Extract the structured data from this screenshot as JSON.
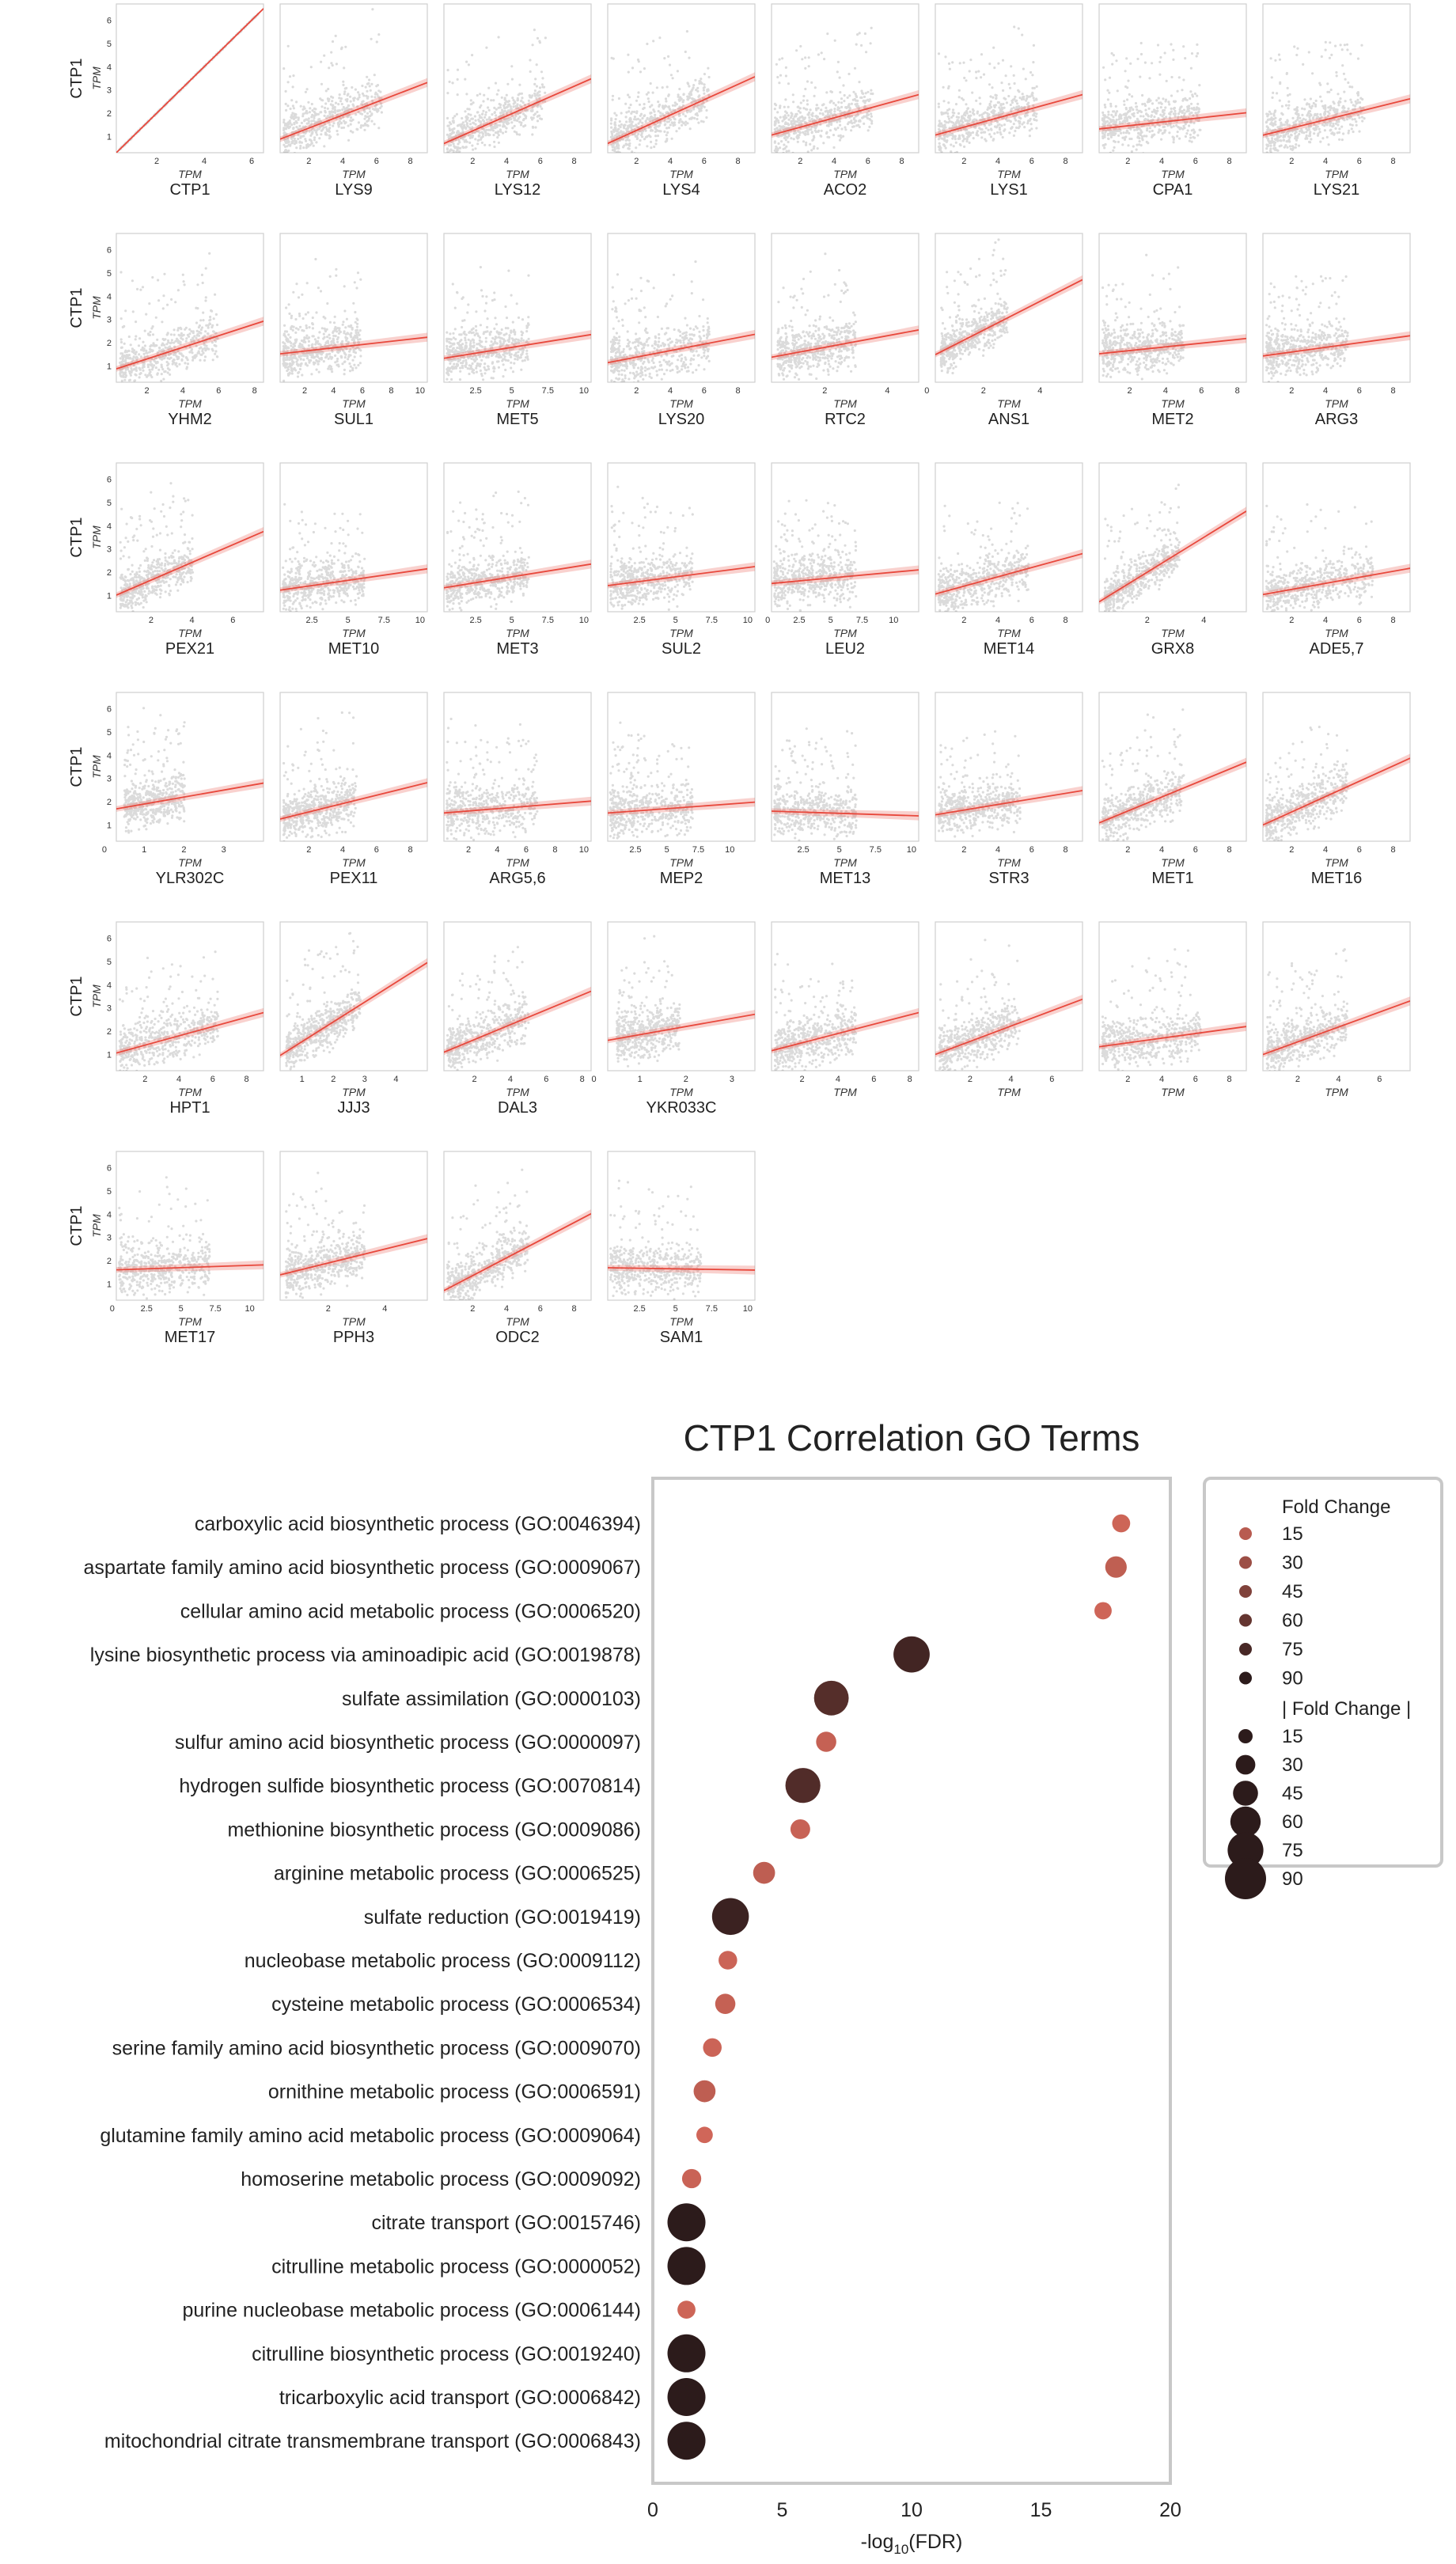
{
  "scatter_grid": {
    "y_label": "CTP1",
    "y_axis_label": "TPM",
    "x_axis_label": "TPM",
    "y_ticks": [
      1,
      2,
      3,
      4,
      5,
      6
    ],
    "point_color": "#000000",
    "line_color": "#e8483c",
    "panels": [
      {
        "gene": "CTP1",
        "xmax": 6.5,
        "xticks": [
          2,
          4,
          6
        ],
        "slope": 1.0,
        "intercept": 0.0,
        "spread": 0.02,
        "cloud": 0.9,
        "identity": true
      },
      {
        "gene": "LYS9",
        "xmax": 9.0,
        "xticks": [
          2,
          4,
          6,
          8
        ],
        "slope": 0.28,
        "intercept": 0.8,
        "spread": 0.7,
        "cloud": 0.5
      },
      {
        "gene": "LYS12",
        "xmax": 9.0,
        "xticks": [
          2,
          4,
          6,
          8
        ],
        "slope": 0.32,
        "intercept": 0.6,
        "spread": 0.7,
        "cloud": 0.5
      },
      {
        "gene": "LYS4",
        "xmax": 9.0,
        "xticks": [
          2,
          4,
          6,
          8
        ],
        "slope": 0.33,
        "intercept": 0.6,
        "spread": 0.7,
        "cloud": 0.5
      },
      {
        "gene": "ACO2",
        "xmax": 9.0,
        "xticks": [
          2,
          4,
          6,
          8
        ],
        "slope": 0.2,
        "intercept": 1.0,
        "spread": 0.7,
        "cloud": 0.5
      },
      {
        "gene": "LYS1",
        "xmax": 9.0,
        "xticks": [
          2,
          4,
          6,
          8
        ],
        "slope": 0.2,
        "intercept": 1.0,
        "spread": 0.7,
        "cloud": 0.5
      },
      {
        "gene": "CPA1",
        "xmax": 9.0,
        "xticks": [
          2,
          4,
          6,
          8
        ],
        "slope": 0.08,
        "intercept": 1.3,
        "spread": 0.7,
        "cloud": 0.5
      },
      {
        "gene": "LYS21",
        "xmax": 9.0,
        "xticks": [
          2,
          4,
          6,
          8
        ],
        "slope": 0.18,
        "intercept": 1.0,
        "spread": 0.7,
        "cloud": 0.5
      },
      {
        "gene": "YHM2",
        "xmax": 8.5,
        "xticks": [
          2,
          4,
          6,
          8
        ],
        "slope": 0.25,
        "intercept": 0.8,
        "spread": 0.7,
        "cloud": 0.5
      },
      {
        "gene": "SUL1",
        "xmax": 10.5,
        "xticks": [
          2,
          4,
          6,
          8,
          10
        ],
        "slope": 0.07,
        "intercept": 1.5,
        "spread": 0.7,
        "cloud": 0.25
      },
      {
        "gene": "MET5",
        "xmax": 10.5,
        "xticks": [
          2.5,
          5.0,
          7.5,
          10.0
        ],
        "slope": 0.1,
        "intercept": 1.3,
        "spread": 0.7,
        "cloud": 0.3
      },
      {
        "gene": "LYS20",
        "xmax": 9.0,
        "xticks": [
          2,
          4,
          6,
          8
        ],
        "slope": 0.14,
        "intercept": 1.1,
        "spread": 0.7,
        "cloud": 0.5
      },
      {
        "gene": "RTC2",
        "xmax": 5.0,
        "xticks": [
          2,
          4
        ],
        "slope": 0.25,
        "intercept": 1.3,
        "spread": 0.7,
        "cloud": 0.3
      },
      {
        "gene": "ANS1",
        "xmax": 5.5,
        "xticks": [
          0,
          2,
          4
        ],
        "slope": 0.62,
        "intercept": 1.3,
        "spread": 0.6,
        "cloud": 0.15
      },
      {
        "gene": "MET2",
        "xmax": 8.5,
        "xticks": [
          2,
          4,
          6,
          8
        ],
        "slope": 0.08,
        "intercept": 1.5,
        "spread": 0.7,
        "cloud": 0.3
      },
      {
        "gene": "ARG3",
        "xmax": 9.0,
        "xticks": [
          2,
          4,
          6,
          8
        ],
        "slope": 0.1,
        "intercept": 1.4,
        "spread": 0.7,
        "cloud": 0.3
      },
      {
        "gene": "PEX21",
        "xmax": 7.5,
        "xticks": [
          2,
          4,
          6
        ],
        "slope": 0.38,
        "intercept": 0.9,
        "spread": 0.6,
        "cloud": 0.2
      },
      {
        "gene": "MET10",
        "xmax": 10.5,
        "xticks": [
          2.5,
          5.0,
          7.5,
          10.0
        ],
        "slope": 0.09,
        "intercept": 1.2,
        "spread": 0.7,
        "cloud": 0.3
      },
      {
        "gene": "MET3",
        "xmax": 10.5,
        "xticks": [
          2.5,
          5.0,
          7.5,
          10.0
        ],
        "slope": 0.1,
        "intercept": 1.3,
        "spread": 0.7,
        "cloud": 0.3
      },
      {
        "gene": "SUL2",
        "xmax": 10.5,
        "xticks": [
          2.5,
          5.0,
          7.5,
          10.0
        ],
        "slope": 0.08,
        "intercept": 1.4,
        "spread": 0.7,
        "cloud": 0.3
      },
      {
        "gene": "LEU2",
        "xmax": 12.0,
        "xticks": [
          0,
          2.5,
          5.0,
          7.5,
          10.0
        ],
        "slope": 0.05,
        "intercept": 1.5,
        "spread": 0.7,
        "cloud": 0.3
      },
      {
        "gene": "MET14",
        "xmax": 9.0,
        "xticks": [
          2,
          4,
          6,
          8
        ],
        "slope": 0.2,
        "intercept": 1.0,
        "spread": 0.7,
        "cloud": 0.4
      },
      {
        "gene": "GRX8",
        "xmax": 5.5,
        "xticks": [
          2,
          4
        ],
        "slope": 0.75,
        "intercept": 0.5,
        "spread": 0.6,
        "cloud": 0.25
      },
      {
        "gene": "ADE5,7",
        "xmax": 9.0,
        "xticks": [
          2,
          4,
          6,
          8
        ],
        "slope": 0.13,
        "intercept": 1.0,
        "spread": 0.7,
        "cloud": 0.6
      },
      {
        "gene": "YLR302C",
        "xmax": 4.0,
        "xticks": [
          0,
          1,
          2,
          3
        ],
        "slope": 0.3,
        "intercept": 1.6,
        "spread": 0.7,
        "cloud": 0.1
      },
      {
        "gene": "PEX11",
        "xmax": 9.0,
        "xticks": [
          2,
          4,
          6,
          8
        ],
        "slope": 0.18,
        "intercept": 1.2,
        "spread": 0.7,
        "cloud": 0.2
      },
      {
        "gene": "ARG5,6",
        "xmax": 10.5,
        "xticks": [
          2,
          4,
          6,
          8,
          10
        ],
        "slope": 0.05,
        "intercept": 1.5,
        "spread": 0.7,
        "cloud": 0.4
      },
      {
        "gene": "MEP2",
        "xmax": 12.0,
        "xticks": [
          2.5,
          5.0,
          7.5,
          10.0
        ],
        "slope": 0.04,
        "intercept": 1.5,
        "spread": 0.7,
        "cloud": 0.3
      },
      {
        "gene": "MET13",
        "xmax": 10.5,
        "xticks": [
          2.5,
          5.0,
          7.5,
          10.0
        ],
        "slope": -0.02,
        "intercept": 1.6,
        "spread": 0.7,
        "cloud": 0.3
      },
      {
        "gene": "STR3",
        "xmax": 9.0,
        "xticks": [
          2,
          4,
          6,
          8
        ],
        "slope": 0.12,
        "intercept": 1.4,
        "spread": 0.7,
        "cloud": 0.3
      },
      {
        "gene": "MET1",
        "xmax": 9.0,
        "xticks": [
          2,
          4,
          6,
          8
        ],
        "slope": 0.3,
        "intercept": 1.0,
        "spread": 0.7,
        "cloud": 0.3
      },
      {
        "gene": "MET16",
        "xmax": 9.0,
        "xticks": [
          2,
          4,
          6,
          8
        ],
        "slope": 0.33,
        "intercept": 0.9,
        "spread": 0.7,
        "cloud": 0.3
      },
      {
        "gene": "HPT1",
        "xmax": 9.0,
        "xticks": [
          2,
          4,
          6,
          8
        ],
        "slope": 0.2,
        "intercept": 1.0,
        "spread": 0.7,
        "cloud": 0.5
      },
      {
        "gene": "JJJ3",
        "xmax": 5.0,
        "xticks": [
          1,
          2,
          3,
          4
        ],
        "slope": 0.85,
        "intercept": 0.7,
        "spread": 0.6,
        "cloud": 0.25
      },
      {
        "gene": "DAL3",
        "xmax": 8.5,
        "xticks": [
          2,
          4,
          6,
          8
        ],
        "slope": 0.32,
        "intercept": 1.0,
        "spread": 0.7,
        "cloud": 0.3
      },
      {
        "gene": "YKR033C",
        "xmax": 3.5,
        "xticks": [
          0,
          1,
          2,
          3
        ],
        "slope": 0.35,
        "intercept": 1.5,
        "spread": 0.7,
        "cloud": 0.15
      },
      {
        "gene": "",
        "xmax": 8.5,
        "xticks": [
          2,
          4,
          6,
          8
        ],
        "slope": 0.2,
        "intercept": 1.1,
        "spread": 0.7,
        "cloud": 0.3
      },
      {
        "gene": "",
        "xmax": 7.5,
        "xticks": [
          2,
          4,
          6
        ],
        "slope": 0.33,
        "intercept": 0.9,
        "spread": 0.7,
        "cloud": 0.3
      },
      {
        "gene": "",
        "xmax": 9.0,
        "xticks": [
          2,
          4,
          6,
          8
        ],
        "slope": 0.1,
        "intercept": 1.3,
        "spread": 0.7,
        "cloud": 0.5
      },
      {
        "gene": "",
        "xmax": 7.5,
        "xticks": [
          2,
          4,
          6
        ],
        "slope": 0.32,
        "intercept": 0.9,
        "spread": 0.7,
        "cloud": 0.3
      },
      {
        "gene": "MET17",
        "xmax": 11.0,
        "xticks": [
          0.0,
          2.5,
          5.0,
          7.5,
          10.0
        ],
        "slope": 0.02,
        "intercept": 1.6,
        "spread": 0.7,
        "cloud": 0.4
      },
      {
        "gene": "PPH3",
        "xmax": 5.5,
        "xticks": [
          2,
          4
        ],
        "slope": 0.3,
        "intercept": 1.3,
        "spread": 0.7,
        "cloud": 0.3
      },
      {
        "gene": "ODC2",
        "xmax": 9.0,
        "xticks": [
          2,
          4,
          6,
          8
        ],
        "slope": 0.38,
        "intercept": 0.6,
        "spread": 0.7,
        "cloud": 0.3
      },
      {
        "gene": "SAM1",
        "xmax": 10.5,
        "xticks": [
          2.5,
          5.0,
          7.5,
          10.0
        ],
        "slope": -0.01,
        "intercept": 1.7,
        "spread": 0.7,
        "cloud": 0.4
      }
    ]
  },
  "chart_data": [
    {
      "type": "scatter",
      "title": "",
      "ylabel": "CTP1 TPM",
      "xlabel": "TPM",
      "ylim": [
        0.3,
        6.7
      ],
      "series": [
        {
          "name": "CTP1",
          "slope": 1.0
        },
        {
          "name": "LYS9",
          "slope": 0.28
        },
        {
          "name": "LYS12",
          "slope": 0.32
        },
        {
          "name": "LYS4",
          "slope": 0.33
        },
        {
          "name": "ACO2",
          "slope": 0.2
        },
        {
          "name": "LYS1",
          "slope": 0.2
        },
        {
          "name": "CPA1",
          "slope": 0.08
        },
        {
          "name": "LYS21",
          "slope": 0.18
        },
        {
          "name": "YHM2",
          "slope": 0.25
        },
        {
          "name": "SUL1",
          "slope": 0.07
        },
        {
          "name": "MET5",
          "slope": 0.1
        },
        {
          "name": "LYS20",
          "slope": 0.14
        },
        {
          "name": "RTC2",
          "slope": 0.25
        },
        {
          "name": "ANS1",
          "slope": 0.62
        },
        {
          "name": "MET2",
          "slope": 0.08
        },
        {
          "name": "ARG3",
          "slope": 0.1
        },
        {
          "name": "PEX21",
          "slope": 0.38
        },
        {
          "name": "MET10",
          "slope": 0.09
        },
        {
          "name": "MET3",
          "slope": 0.1
        },
        {
          "name": "SUL2",
          "slope": 0.08
        },
        {
          "name": "LEU2",
          "slope": 0.05
        },
        {
          "name": "MET14",
          "slope": 0.2
        },
        {
          "name": "GRX8",
          "slope": 0.75
        },
        {
          "name": "ADE5,7",
          "slope": 0.13
        },
        {
          "name": "YLR302C",
          "slope": 0.3
        },
        {
          "name": "PEX11",
          "slope": 0.18
        },
        {
          "name": "ARG5,6",
          "slope": 0.05
        },
        {
          "name": "MEP2",
          "slope": 0.04
        },
        {
          "name": "MET13",
          "slope": -0.02
        },
        {
          "name": "STR3",
          "slope": 0.12
        },
        {
          "name": "MET1",
          "slope": 0.3
        },
        {
          "name": "MET16",
          "slope": 0.33
        },
        {
          "name": "HPT1",
          "slope": 0.2
        },
        {
          "name": "JJJ3",
          "slope": 0.85
        },
        {
          "name": "DAL3",
          "slope": 0.32
        },
        {
          "name": "YKR033C",
          "slope": 0.35
        },
        {
          "name": "MET17",
          "slope": 0.02
        },
        {
          "name": "PPH3",
          "slope": 0.3
        },
        {
          "name": "ODC2",
          "slope": 0.38
        },
        {
          "name": "SAM1",
          "slope": -0.01
        }
      ]
    },
    {
      "type": "scatter",
      "title": "CTP1 Correlation GO Terms",
      "xlabel_main": "-log",
      "xlabel_sub": "10",
      "xlabel_tail": "(FDR)",
      "xlim": [
        0,
        20
      ],
      "xticks": [
        0,
        5,
        10,
        15,
        20
      ],
      "grid": false,
      "legend_position": "right",
      "color_low": "#d4685a",
      "color_high": "#2c1b1b",
      "legend": {
        "color_title": "Fold Change",
        "size_title": "| Fold Change |",
        "levels": [
          15,
          30,
          45,
          60,
          75,
          90
        ]
      },
      "points": [
        {
          "term": "carboxylic acid biosynthetic process (GO:0046394)",
          "x": 18.1,
          "fold_change": 4
        },
        {
          "term": "aspartate family amino acid biosynthetic process (GO:0009067)",
          "x": 17.9,
          "fold_change": 11
        },
        {
          "term": "cellular amino acid metabolic process (GO:0006520)",
          "x": 17.4,
          "fold_change": 3
        },
        {
          "term": "lysine biosynthetic process via aminoadipic acid (GO:0019878)",
          "x": 10.0,
          "fold_change": 78
        },
        {
          "term": "sulfate assimilation (GO:0000103)",
          "x": 6.9,
          "fold_change": 68
        },
        {
          "term": "sulfur amino acid biosynthetic process (GO:0000097)",
          "x": 6.7,
          "fold_change": 8
        },
        {
          "term": "hydrogen sulfide biosynthetic process (GO:0070814)",
          "x": 5.8,
          "fold_change": 70
        },
        {
          "term": "methionine biosynthetic process (GO:0009086)",
          "x": 5.7,
          "fold_change": 7
        },
        {
          "term": "arginine metabolic process (GO:0006525)",
          "x": 4.3,
          "fold_change": 12
        },
        {
          "term": "sulfate reduction (GO:0019419)",
          "x": 3.0,
          "fold_change": 82
        },
        {
          "term": "nucleobase metabolic process (GO:0009112)",
          "x": 2.9,
          "fold_change": 5
        },
        {
          "term": "cysteine metabolic process (GO:0006534)",
          "x": 2.8,
          "fold_change": 8
        },
        {
          "term": "serine family amino acid biosynthetic process (GO:0009070)",
          "x": 2.3,
          "fold_change": 5
        },
        {
          "term": "ornithine metabolic process (GO:0006591)",
          "x": 2.0,
          "fold_change": 12
        },
        {
          "term": "glutamine family amino acid metabolic process (GO:0009064)",
          "x": 2.0,
          "fold_change": 2
        },
        {
          "term": "homoserine metabolic process (GO:0009092)",
          "x": 1.5,
          "fold_change": 6
        },
        {
          "term": "citrate transport (GO:0015746)",
          "x": 1.3,
          "fold_change": 90
        },
        {
          "term": "citrulline metabolic process (GO:0000052)",
          "x": 1.3,
          "fold_change": 90
        },
        {
          "term": "purine nucleobase metabolic process (GO:0006144)",
          "x": 1.3,
          "fold_change": 4
        },
        {
          "term": "citrulline biosynthetic process (GO:0019240)",
          "x": 1.3,
          "fold_change": 90
        },
        {
          "term": "tricarboxylic acid transport (GO:0006842)",
          "x": 1.3,
          "fold_change": 90
        },
        {
          "term": "mitochondrial citrate transmembrane transport (GO:0006843)",
          "x": 1.3,
          "fold_change": 90
        }
      ]
    }
  ]
}
